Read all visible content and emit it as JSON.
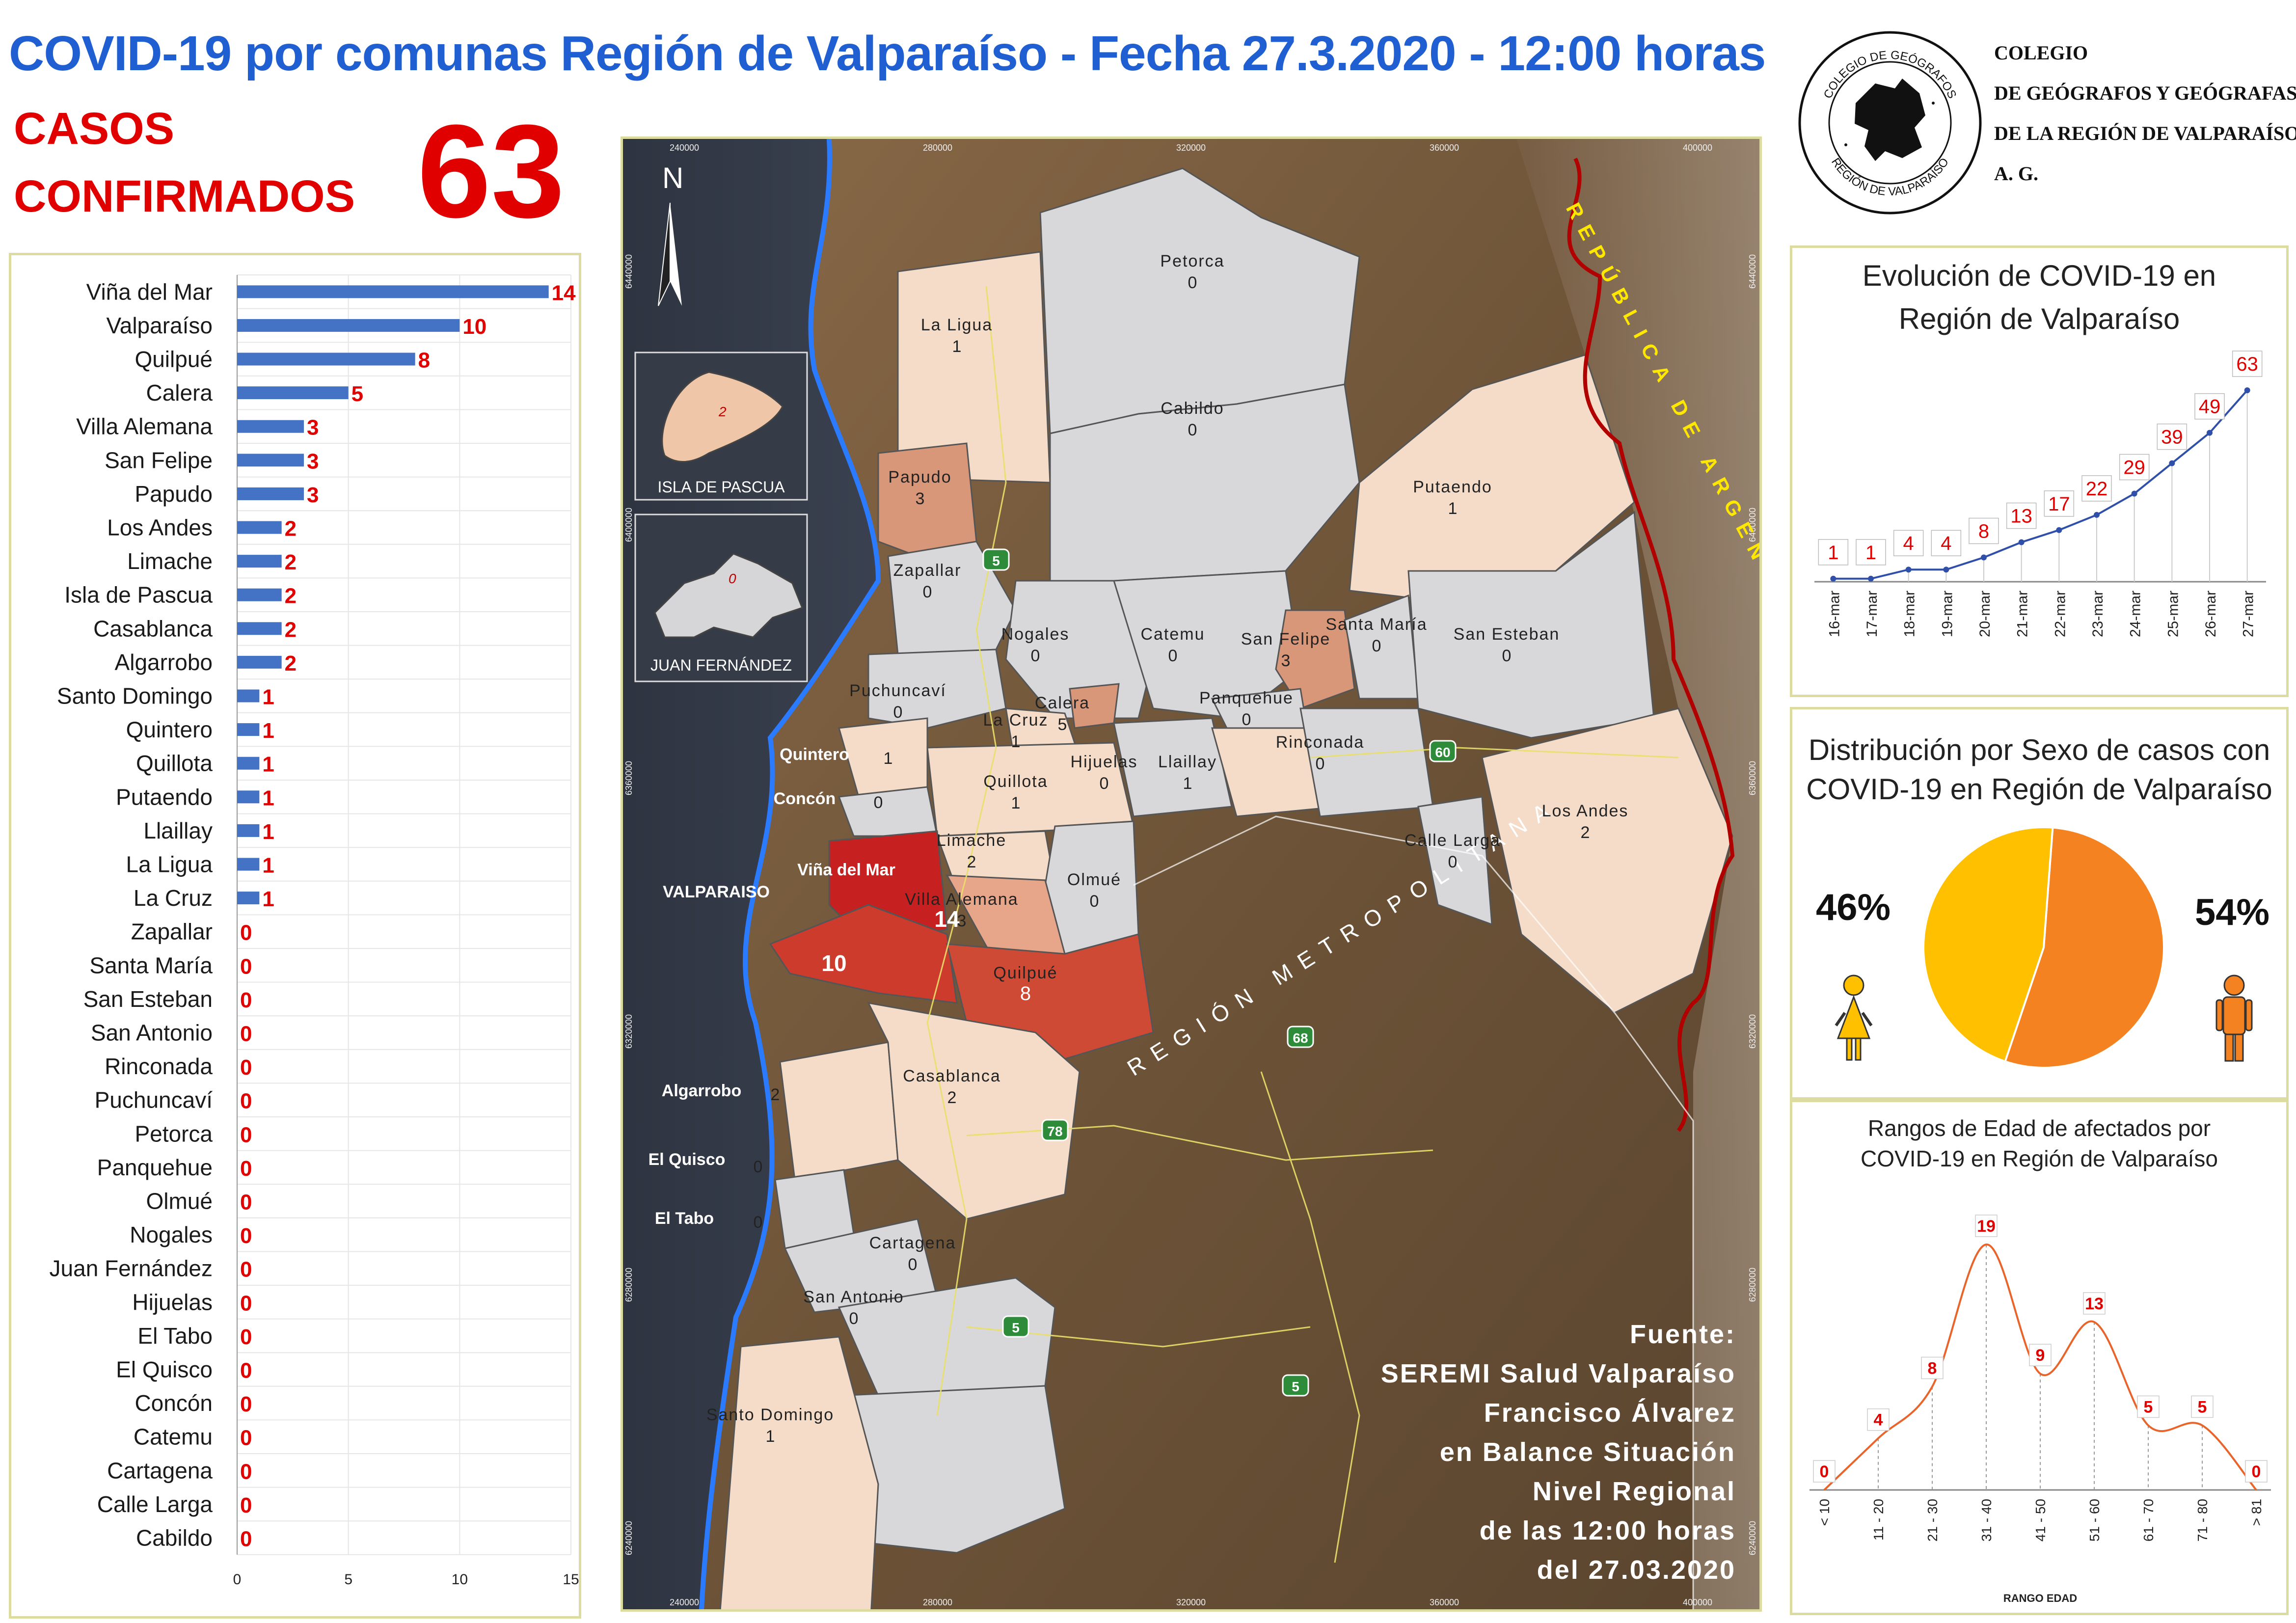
{
  "header": {
    "title": "COVID-19 por comunas Región de Valparaíso - Fecha 27.3.2020 - 12:00 horas",
    "casos_line1": "CASOS",
    "casos_line2": "CONFIRMADOS",
    "total": "63"
  },
  "organization": {
    "lines": [
      "COLEGIO",
      "DE GEÓGRAFOS Y GEÓGRAFAS",
      "DE LA REGIÓN DE VALPARAÍSO",
      "A. G."
    ],
    "seal_top": "COLEGIO DE GEÓGRAFOS",
    "seal_bottom": "REGIÓN DE VALPARAÍSO"
  },
  "colors": {
    "title_blue": "#1f5fd1",
    "accent_red": "#e00000",
    "bar_blue": "#4472c4",
    "line_blue": "#2f4fa8",
    "female_yellow": "#ffc000",
    "male_orange": "#f58220",
    "age_curve": "#e8642a",
    "panel_border": "#dcdca0"
  },
  "chart_data": [
    {
      "type": "bar",
      "orientation": "horizontal",
      "categories": [
        "Viña del Mar",
        "Valparaíso",
        "Quilpué",
        "Calera",
        "Villa Alemana",
        "San Felipe",
        "Papudo",
        "Los Andes",
        "Limache",
        "Isla de Pascua",
        "Casablanca",
        "Algarrobo",
        "Santo Domingo",
        "Quintero",
        "Quillota",
        "Putaendo",
        "Llaillay",
        "La Ligua",
        "La Cruz",
        "Zapallar",
        "Santa María",
        "San Esteban",
        "San Antonio",
        "Rinconada",
        "Puchuncaví",
        "Petorca",
        "Panquehue",
        "Olmué",
        "Nogales",
        "Juan Fernández",
        "Hijuelas",
        "El Tabo",
        "El Quisco",
        "Concón",
        "Catemu",
        "Cartagena",
        "Calle Larga",
        "Cabildo"
      ],
      "values": [
        14,
        10,
        8,
        5,
        3,
        3,
        3,
        2,
        2,
        2,
        2,
        2,
        1,
        1,
        1,
        1,
        1,
        1,
        1,
        0,
        0,
        0,
        0,
        0,
        0,
        0,
        0,
        0,
        0,
        0,
        0,
        0,
        0,
        0,
        0,
        0,
        0,
        0
      ],
      "xlim": [
        0,
        15
      ],
      "xticks": [
        0,
        5,
        10,
        15
      ],
      "grid": true
    },
    {
      "type": "line",
      "title_line1": "Evolución de COVID-19 en",
      "title_line2": "Región de Valparaíso",
      "x": [
        "16-mar",
        "17-mar",
        "18-mar",
        "19-mar",
        "20-mar",
        "21-mar",
        "22-mar",
        "23-mar",
        "24-mar",
        "25-mar",
        "26-mar",
        "27-mar"
      ],
      "values": [
        1,
        1,
        4,
        4,
        8,
        13,
        17,
        22,
        29,
        39,
        49,
        63
      ],
      "ylim": [
        0,
        63
      ]
    },
    {
      "type": "pie",
      "title_line1": "Distribución por Sexo de casos con",
      "title_line2": "COVID-19 en Región de Valparaíso",
      "slices": [
        {
          "label": "46%",
          "value": 46,
          "icon": "female-icon",
          "color": "#ffc000"
        },
        {
          "label": "54%",
          "value": 54,
          "icon": "male-icon",
          "color": "#f58220"
        }
      ]
    },
    {
      "type": "line",
      "smooth": true,
      "title_line1": "Rangos de Edad de afectados por",
      "title_line2": "COVID-19 en Región de Valparaíso",
      "xlabel": "RANGO EDAD",
      "x": [
        "< 10",
        "11 - 20",
        "21 - 30",
        "31 - 40",
        "41 - 50",
        "51 - 60",
        "61 - 70",
        "71 - 80",
        "> 81"
      ],
      "values": [
        0,
        4,
        8,
        19,
        9,
        13,
        5,
        5,
        0
      ],
      "ylim": [
        0,
        19
      ]
    }
  ],
  "map": {
    "north": "N",
    "inset_pascua": {
      "label": "ISLA DE PASCUA",
      "value": "2"
    },
    "inset_juan": {
      "label": "JUAN FERNÁNDEZ",
      "value": "0"
    },
    "neighbors": {
      "argentina": "REPÚBLICA DE ARGENTINA",
      "rm": "REGIÓN METROPOLITANA"
    },
    "x_ticks": [
      "240000",
      "280000",
      "320000",
      "360000",
      "400000"
    ],
    "y_ticks": [
      "6440000",
      "6400000",
      "6360000",
      "6320000",
      "6280000",
      "6240000"
    ],
    "roads": [
      "5",
      "60",
      "68",
      "78",
      "5",
      "5"
    ],
    "comunas": [
      {
        "name": "Petorca",
        "value": "0"
      },
      {
        "name": "La Ligua",
        "value": "1"
      },
      {
        "name": "Cabildo",
        "value": "0"
      },
      {
        "name": "Papudo",
        "value": "3"
      },
      {
        "name": "Putaendo",
        "value": "1"
      },
      {
        "name": "Zapallar",
        "value": "0"
      },
      {
        "name": "Nogales",
        "value": "0"
      },
      {
        "name": "Catemu",
        "value": "0"
      },
      {
        "name": "San Felipe",
        "value": "3"
      },
      {
        "name": "Santa María",
        "value": "0"
      },
      {
        "name": "San Esteban",
        "value": "0"
      },
      {
        "name": "Puchuncaví",
        "value": "0"
      },
      {
        "name": "Calera",
        "value": "5"
      },
      {
        "name": "La Cruz",
        "value": "1"
      },
      {
        "name": "Panquehue",
        "value": "0"
      },
      {
        "name": "Quintero",
        "value": "1"
      },
      {
        "name": "Hijuelas",
        "value": "0"
      },
      {
        "name": "Llaillay",
        "value": "1"
      },
      {
        "name": "Rinconada",
        "value": "0"
      },
      {
        "name": "Quillota",
        "value": "1"
      },
      {
        "name": "Concón",
        "value": "0"
      },
      {
        "name": "Limache",
        "value": "2"
      },
      {
        "name": "Viña del Mar",
        "value": "14"
      },
      {
        "name": "Olmué",
        "value": "0"
      },
      {
        "name": "Calle Larga",
        "value": "0"
      },
      {
        "name": "Los Andes",
        "value": "2"
      },
      {
        "name": "VALPARAISO",
        "value": "10"
      },
      {
        "name": "Villa Alemana",
        "value": "3"
      },
      {
        "name": "Quilpué",
        "value": "8"
      },
      {
        "name": "Algarrobo",
        "value": "2"
      },
      {
        "name": "Casablanca",
        "value": "2"
      },
      {
        "name": "El Quisco",
        "value": "0"
      },
      {
        "name": "El Tabo",
        "value": "0"
      },
      {
        "name": "Cartagena",
        "value": "0"
      },
      {
        "name": "San Antonio",
        "value": "0"
      },
      {
        "name": "Santo Domingo",
        "value": "1"
      }
    ],
    "source_lines": [
      "Fuente:",
      "SEREMI Salud Valparaíso",
      "Francisco Álvarez",
      "en Balance Situación",
      "Nivel Regional",
      "de las 12:00 horas",
      "del 27.03.2020"
    ]
  }
}
